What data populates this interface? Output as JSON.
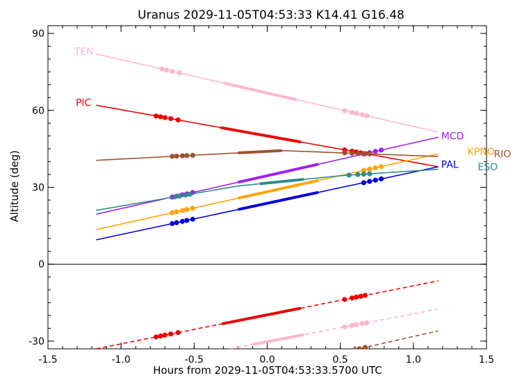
{
  "chart_data": {
    "type": "line",
    "title": "Uranus 2029-11-05T04:53:33  K14.41  G16.48",
    "xlabel": "Hours from 2029-11-05T04:53:33.5700 UTC",
    "ylabel": "Altitude (deg)",
    "xlim": [
      -1.5,
      1.5
    ],
    "ylim": [
      -33,
      93
    ],
    "xticks": [
      -1.5,
      -1.0,
      -0.5,
      0.0,
      0.5,
      1.0,
      1.5
    ],
    "xtick_labels": [
      "-1.5",
      "-1.0",
      "-0.5",
      "0.0",
      "0.5",
      "1.0",
      "1.5"
    ],
    "yticks": [
      -30,
      0,
      30,
      60,
      90
    ],
    "ytick_labels": [
      "-30",
      "0",
      "30",
      "60",
      "90"
    ],
    "zero_line": 0,
    "grid": false,
    "legend": "station labels at line ends",
    "series": [
      {
        "name": "TEN",
        "color": "#ffb6c8",
        "label_color": "#ffb6c8",
        "x": [
          -1.17,
          1.17
        ],
        "y": [
          82,
          51.5
        ],
        "label_x": -1.32,
        "label_y": 83,
        "thick": [
          [
            -0.3,
            0.2
          ]
        ],
        "dots": [
          -0.72,
          -0.69,
          -0.65,
          -0.6,
          0.53,
          0.58,
          0.61,
          0.65,
          0.68
        ],
        "below": {
          "x": [
            -0.35,
            1.17
          ],
          "y": [
            -34,
            -17.5
          ],
          "thick": [
            [
              -0.1,
              0.25
            ]
          ],
          "dots": [
            0.53,
            0.58,
            0.61,
            0.65,
            0.68
          ]
        }
      },
      {
        "name": "PIC",
        "color": "#ee0000",
        "label_color": "#ee0000",
        "x": [
          -1.17,
          1.17
        ],
        "y": [
          62,
          38
        ],
        "label_x": -1.31,
        "label_y": 63,
        "thick": [
          [
            -0.32,
            0.23
          ]
        ],
        "dots": [
          -0.76,
          -0.73,
          -0.7,
          -0.66,
          -0.61,
          0.53,
          0.58,
          0.61,
          0.64,
          0.67
        ],
        "below": {
          "x": [
            -1.17,
            1.17
          ],
          "y": [
            -33,
            -6.5
          ],
          "thick": [
            [
              -0.31,
              0.23
            ]
          ],
          "dots": [
            -0.76,
            -0.73,
            -0.7,
            -0.66,
            -0.61,
            0.53,
            0.58,
            0.61,
            0.64,
            0.67
          ]
        }
      },
      {
        "name": "MCD",
        "color": "#a020f0",
        "label_color": "#a020f0",
        "x": [
          -1.17,
          1.17
        ],
        "y": [
          19.5,
          49.5
        ],
        "label_x": 1.19,
        "label_y": 50,
        "thick": [
          [
            -0.2,
            0.35
          ]
        ],
        "dots": [
          -0.65,
          -0.62,
          -0.58,
          -0.55,
          -0.51,
          0.66,
          0.7,
          0.74,
          0.78
        ]
      },
      {
        "name": "KPNO",
        "color": "#ffa500",
        "label_color": "#ffa500",
        "x": [
          -1.17,
          1.17
        ],
        "y": [
          13.5,
          43
        ],
        "label_x": 1.37,
        "label_y": 44,
        "thick": [
          [
            -0.2,
            0.35
          ]
        ],
        "dots": [
          -0.65,
          -0.62,
          -0.58,
          -0.55,
          -0.51,
          0.66,
          0.7,
          0.74,
          0.78
        ]
      },
      {
        "name": "RIO",
        "color": "#a0522d",
        "label_color": "#a0522d",
        "x": [
          -1.17,
          0.1,
          1.17
        ],
        "y": [
          40.5,
          44.3,
          42
        ],
        "label_x": 1.55,
        "label_y": 43,
        "thick": [
          [
            -0.2,
            0.1
          ]
        ],
        "dots": [
          -0.65,
          -0.62,
          -0.58,
          -0.55,
          -0.51,
          0.53,
          0.58,
          0.62,
          0.66,
          0.7
        ],
        "below": {
          "x": [
            0.55,
            1.17
          ],
          "y": [
            -34,
            -26
          ],
          "thick": [],
          "dots": [
            0.6,
            0.63,
            0.67
          ]
        }
      },
      {
        "name": "PAL",
        "color": "#0000dd",
        "label_color": "#0000dd",
        "x": [
          -1.17,
          1.17
        ],
        "y": [
          9.5,
          38
        ],
        "label_x": 1.19,
        "label_y": 39,
        "thick": [
          [
            -0.2,
            0.35
          ]
        ],
        "dots": [
          -0.65,
          -0.62,
          -0.58,
          -0.55,
          -0.51,
          0.66,
          0.7,
          0.74,
          0.78
        ]
      },
      {
        "name": "ESO",
        "color": "#2e8b8b",
        "label_color": "#2e8b8b",
        "x": [
          -1.17,
          -0.2,
          0.5,
          1.17
        ],
        "y": [
          21,
          30.5,
          34.5,
          37
        ],
        "label_x": 1.44,
        "label_y": 38,
        "thick": [
          [
            -0.05,
            0.25
          ]
        ],
        "dots": [
          -0.63,
          -0.6,
          -0.56,
          -0.53,
          0.56,
          0.62,
          0.66,
          0.7
        ]
      }
    ]
  }
}
